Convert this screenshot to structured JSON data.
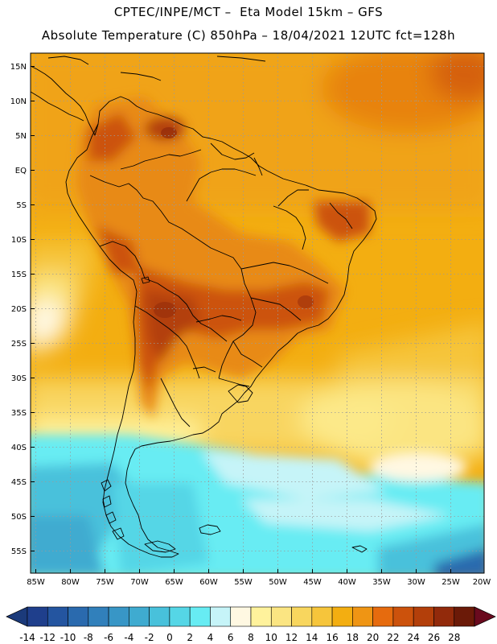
{
  "header": {
    "title_line1": "CPTEC/INPE/MCT –  Eta Model 15km – GFS",
    "title_line2": "Absolute Temperature (C) 850hPa – 18/04/2021 12UTC fct=128h"
  },
  "map": {
    "lat_labels": [
      "15N",
      "10N",
      "5N",
      "EQ",
      "5S",
      "10S",
      "15S",
      "20S",
      "25S",
      "30S",
      "35S",
      "40S",
      "45S",
      "50S",
      "55S"
    ],
    "lon_labels": [
      "85W",
      "80W",
      "75W",
      "70W",
      "65W",
      "60W",
      "55W",
      "50W",
      "45W",
      "40W",
      "35W",
      "30W",
      "25W",
      "20W"
    ]
  },
  "colorbar": {
    "labels": [
      "-14",
      "-12",
      "-10",
      "-8",
      "-6",
      "-4",
      "-2",
      "0",
      "2",
      "4",
      "6",
      "8",
      "10",
      "12",
      "14",
      "16",
      "18",
      "20",
      "22",
      "24",
      "26",
      "28"
    ],
    "colors": [
      "#1f3f8c",
      "#2455a0",
      "#2a6aae",
      "#3180bb",
      "#3896c6",
      "#3fabd0",
      "#48c1db",
      "#55d6e6",
      "#67ecf3",
      "#c6f4f8",
      "#fff8e2",
      "#fff29c",
      "#fbe582",
      "#f8d65e",
      "#f6c53b",
      "#f3ae11",
      "#ef9514",
      "#e66b0e",
      "#cc520c",
      "#b33f0a",
      "#922a0b",
      "#6b1a08"
    ],
    "under_color": "#1b3a7a",
    "over_color": "#6a0a1e"
  }
}
